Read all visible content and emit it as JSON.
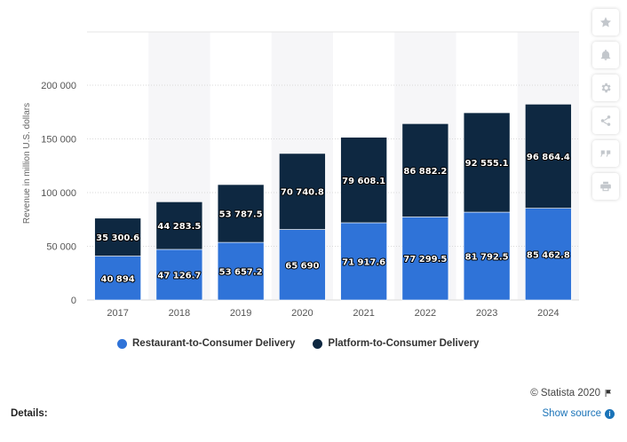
{
  "chart_data": {
    "type": "bar",
    "stacked": true,
    "categories": [
      "2017",
      "2018",
      "2019",
      "2020",
      "2021",
      "2022",
      "2023",
      "2024"
    ],
    "series": [
      {
        "name": "Restaurant-to-Consumer Delivery",
        "color": "#2f73d8",
        "values": [
          40894,
          47126.7,
          53657.2,
          65690,
          71917.6,
          77299.5,
          81792.5,
          85462.8
        ],
        "labels": [
          "40 894",
          "47 126.7",
          "53 657.2",
          "65 690",
          "71 917.6",
          "77 299.5",
          "81 792.5",
          "85 462.8"
        ]
      },
      {
        "name": "Platform-to-Consumer Delivery",
        "color": "#0e2841",
        "values": [
          35300.6,
          44283.5,
          53787.5,
          70740.8,
          79608.1,
          86882.2,
          92555.1,
          96864.4
        ],
        "labels": [
          "35 300.6",
          "44 283.5",
          "53 787.5",
          "70 740.8",
          "79 608.1",
          "86 882.2",
          "92 555.1",
          "96 864.4"
        ]
      }
    ],
    "ylabel": "Revenue in million U.S. dollars",
    "ylim": [
      0,
      200000
    ],
    "yticks": [
      0,
      50000,
      100000,
      150000,
      200000
    ],
    "ytick_labels": [
      "0",
      "50 000",
      "100 000",
      "150 000",
      "200 000"
    ],
    "grid": true,
    "legend_position": "bottom-left"
  },
  "legend": {
    "items": [
      {
        "label": "Restaurant-to-Consumer Delivery",
        "color": "#2f73d8"
      },
      {
        "label": "Platform-to-Consumer Delivery",
        "color": "#0e2841"
      }
    ]
  },
  "toolbar": {
    "icons": [
      "star-icon",
      "bell-icon",
      "gear-icon",
      "share-icon",
      "quote-icon",
      "print-icon"
    ]
  },
  "footer": {
    "credit": "© Statista 2020",
    "details": "Details:",
    "show_source": "Show source"
  }
}
